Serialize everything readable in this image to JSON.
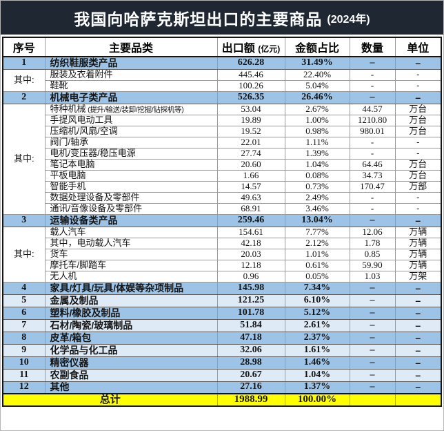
{
  "page": {
    "title": "我国向哈萨克斯坦出口的主要商品",
    "title_year": "(2024年)"
  },
  "colors": {
    "title_bg": "#1F2733",
    "title_text": "#FFFFFF",
    "main_row_bg": "#9DC3E6",
    "alt_row_bg": "#DEEBF7",
    "sub_row_bg": "#FFFFFF",
    "total_row_bg": "#FFFF00",
    "border_outer": "#141414",
    "border_inner": "#9A9A9A"
  },
  "table_headers": {
    "no": "序号",
    "category": "主要品类",
    "value": "出口额",
    "value_unit": "(亿元)",
    "share": "金额占比",
    "qty": "数量",
    "unit": "单位"
  },
  "chart_data": {
    "type": "table",
    "title": "我国向哈萨克斯坦出口的主要商品 (2024年)",
    "columns": [
      "序号",
      "主要品类",
      "出口额(亿元)",
      "金额占比",
      "数量",
      "单位"
    ],
    "total_export_value": 1988.99,
    "rows": [
      {
        "no": "1",
        "label": "纺织鞋服类产品",
        "value": "626.28",
        "pct": "31.49%",
        "qty": "–",
        "unit": "–",
        "style": "main"
      },
      {
        "group_label": "其中:",
        "group_span": 2,
        "label": "服装及衣着附件",
        "value": "445.46",
        "pct": "22.40%",
        "qty": "-",
        "unit": "-",
        "style": "sub"
      },
      {
        "label": "鞋靴",
        "value": "100.26",
        "pct": "5.04%",
        "qty": "-",
        "unit": "-",
        "style": "sub"
      },
      {
        "no": "2",
        "label": "机械电子类产品",
        "value": "526.35",
        "pct": "26.46%",
        "qty": "–",
        "unit": "–",
        "style": "main"
      },
      {
        "group_label": "其中:",
        "group_span": 10,
        "label": "特种机械",
        "note": "(提升/输送/装卸/挖掘/钻探机等)",
        "value": "53.04",
        "pct": "2.67%",
        "qty": "44.57",
        "unit": "万台",
        "style": "sub"
      },
      {
        "label": "手提风电动工具",
        "value": "19.89",
        "pct": "1.00%",
        "qty": "1210.80",
        "unit": "万台",
        "style": "sub"
      },
      {
        "label": "压缩机/风扇/空调",
        "value": "19.52",
        "pct": "0.98%",
        "qty": "980.01",
        "unit": "万台",
        "style": "sub"
      },
      {
        "label": "阀门/轴承",
        "value": "22.01",
        "pct": "1.11%",
        "qty": "-",
        "unit": "-",
        "style": "sub"
      },
      {
        "label": "电机/变压器/稳压电源",
        "value": "27.74",
        "pct": "1.39%",
        "qty": "-",
        "unit": "-",
        "style": "sub"
      },
      {
        "label": "笔记本电脑",
        "value": "20.60",
        "pct": "1.04%",
        "qty": "64.46",
        "unit": "万台",
        "style": "sub"
      },
      {
        "label": "平板电脑",
        "value": "1.66",
        "pct": "0.08%",
        "qty": "34.73",
        "unit": "万台",
        "style": "sub"
      },
      {
        "label": "智能手机",
        "value": "14.57",
        "pct": "0.73%",
        "qty": "170.47",
        "unit": "万部",
        "style": "sub"
      },
      {
        "label": "数据处理设备及零部件",
        "value": "49.63",
        "pct": "2.49%",
        "qty": "-",
        "unit": "-",
        "style": "sub"
      },
      {
        "label": "通讯/音像设备及零部件",
        "value": "68.91",
        "pct": "3.46%",
        "qty": "-",
        "unit": "-",
        "style": "sub"
      },
      {
        "no": "3",
        "label": "运输设备类产品",
        "value": "259.46",
        "pct": "13.04%",
        "qty": "–",
        "unit": "–",
        "style": "main"
      },
      {
        "group_label": "其中:",
        "group_span": 5,
        "label": "载人汽车",
        "value": "154.61",
        "pct": "7.77%",
        "qty": "12.06",
        "unit": "万辆",
        "style": "sub"
      },
      {
        "label": "其中，电动载人汽车",
        "value": "42.18",
        "pct": "2.12%",
        "qty": "1.78",
        "unit": "万辆",
        "style": "sub"
      },
      {
        "label": "货车",
        "value": "20.03",
        "pct": "1.01%",
        "qty": "0.85",
        "unit": "万辆",
        "style": "sub"
      },
      {
        "label": "摩托车/脚踏车",
        "value": "12.18",
        "pct": "0.61%",
        "qty": "59.90",
        "unit": "万辆",
        "style": "sub"
      },
      {
        "label": "无人机",
        "value": "0.96",
        "pct": "0.05%",
        "qty": "1.03",
        "unit": "万架",
        "style": "sub"
      },
      {
        "no": "4",
        "label": "家具/灯具/玩具/体娱等杂项制品",
        "value": "145.98",
        "pct": "7.34%",
        "qty": "–",
        "unit": "–",
        "style": "main"
      },
      {
        "no": "5",
        "label": "金属及制品",
        "value": "121.25",
        "pct": "6.10%",
        "qty": "–",
        "unit": "–",
        "style": "alt"
      },
      {
        "no": "6",
        "label": "塑料/橡胶及制品",
        "value": "101.78",
        "pct": "5.12%",
        "qty": "–",
        "unit": "–",
        "style": "main"
      },
      {
        "no": "7",
        "label": "石材/陶瓷/玻璃制品",
        "value": "51.84",
        "pct": "2.61%",
        "qty": "–",
        "unit": "–",
        "style": "alt"
      },
      {
        "no": "8",
        "label": "皮革/箱包",
        "value": "47.18",
        "pct": "2.37%",
        "qty": "–",
        "unit": "–",
        "style": "main"
      },
      {
        "no": "9",
        "label": "化学品与化工品",
        "value": "32.06",
        "pct": "1.61%",
        "qty": "–",
        "unit": "–",
        "style": "alt"
      },
      {
        "no": "10",
        "label": "精密仪器",
        "value": "28.98",
        "pct": "1.46%",
        "qty": "–",
        "unit": "–",
        "style": "main"
      },
      {
        "no": "11",
        "label": "农副食品",
        "value": "20.67",
        "pct": "1.04%",
        "qty": "–",
        "unit": "–",
        "style": "alt"
      },
      {
        "no": "12",
        "label": "其他",
        "value": "27.16",
        "pct": "1.37%",
        "qty": "–",
        "unit": "–",
        "style": "main"
      },
      {
        "label": "总计",
        "value": "1988.99",
        "pct": "100.00%",
        "qty": "",
        "unit": "",
        "style": "total"
      }
    ]
  }
}
